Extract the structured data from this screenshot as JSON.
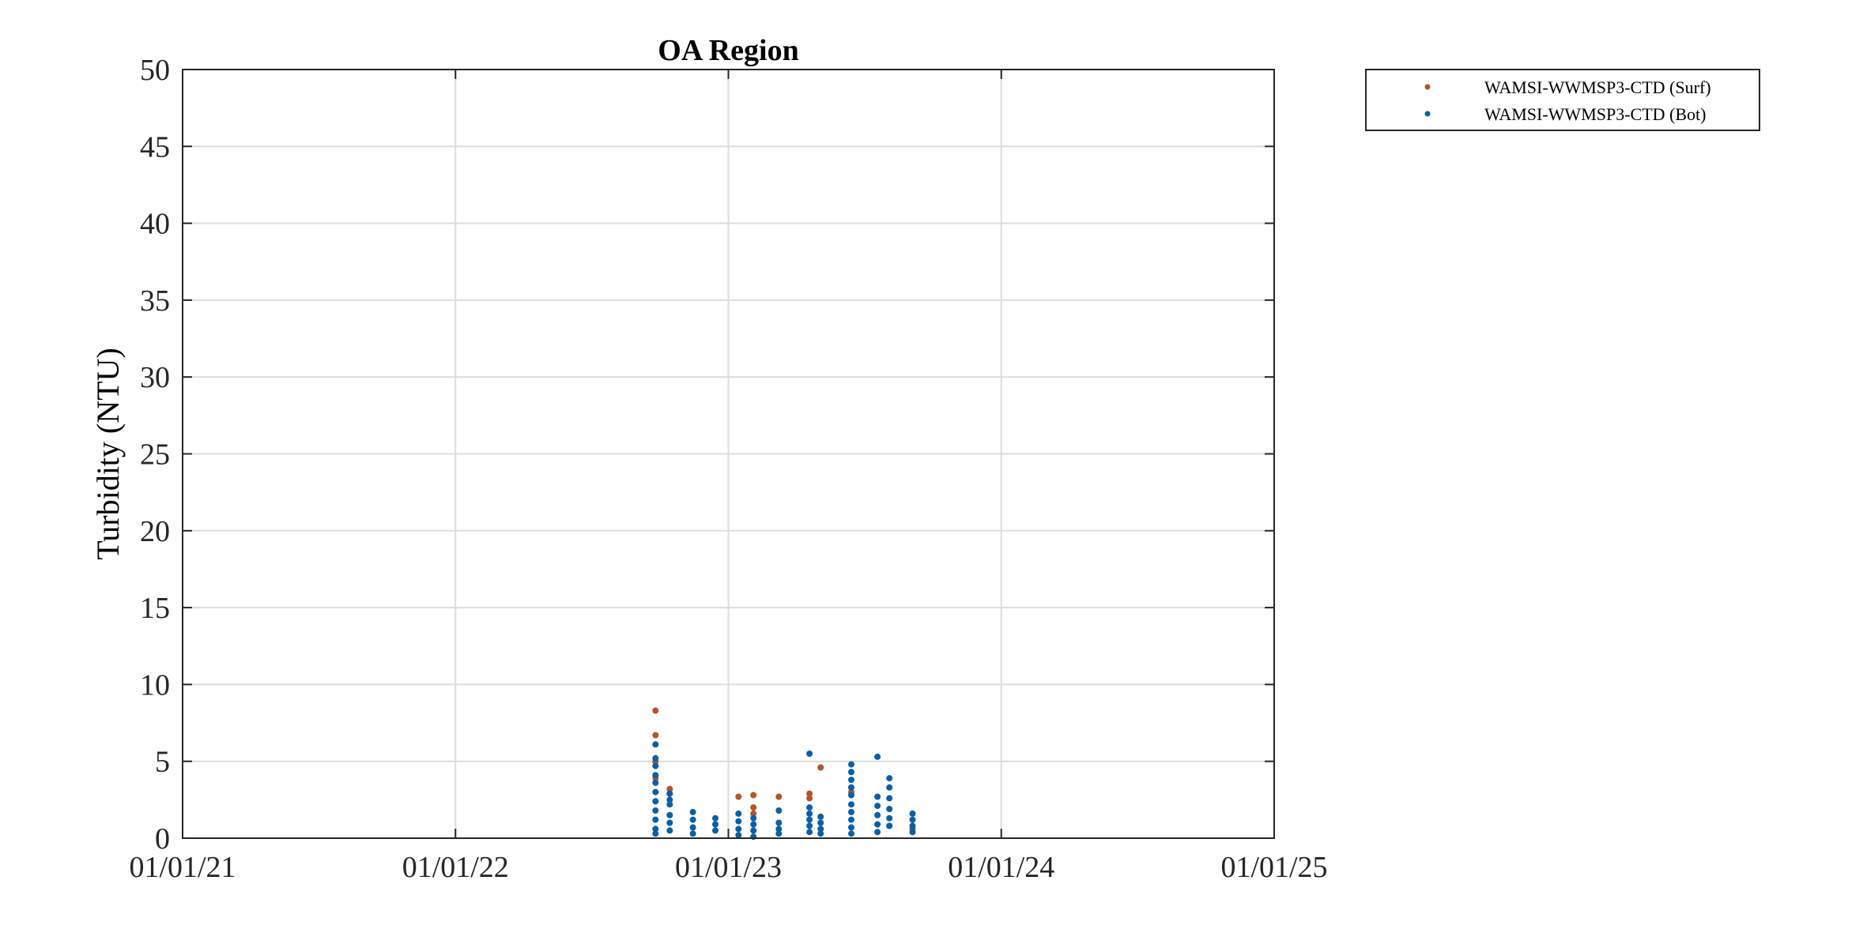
{
  "chart_data": {
    "type": "scatter",
    "title": "OA Region",
    "xlabel": "",
    "ylabel": "Turbidity (NTU)",
    "x_ticks": [
      "01/01/21",
      "01/01/22",
      "01/01/23",
      "01/01/24",
      "01/01/25"
    ],
    "y_ticks": [
      "0",
      "5",
      "10",
      "15",
      "20",
      "25",
      "30",
      "35",
      "40",
      "45",
      "50"
    ],
    "xlim": [
      "2021-01-01",
      "2025-01-01"
    ],
    "ylim": [
      0,
      50
    ],
    "grid": true,
    "legend_position": "outside-top-right",
    "series": [
      {
        "name": "WAMSI-WWMSP3-CTD (Surf)",
        "color": "#b5532a",
        "points": [
          [
            "2022-09-26",
            8.3
          ],
          [
            "2022-09-26",
            6.7
          ],
          [
            "2022-09-26",
            5.0
          ],
          [
            "2022-09-26",
            3.9
          ],
          [
            "2022-10-15",
            3.2
          ],
          [
            "2022-10-15",
            2.9
          ],
          [
            "2023-01-15",
            2.7
          ],
          [
            "2023-02-04",
            2.8
          ],
          [
            "2023-02-04",
            2.0
          ],
          [
            "2023-02-04",
            1.6
          ],
          [
            "2023-03-10",
            2.7
          ],
          [
            "2023-04-20",
            2.9
          ],
          [
            "2023-04-20",
            2.6
          ],
          [
            "2023-05-05",
            4.6
          ],
          [
            "2023-06-15",
            3.0
          ],
          [
            "2023-08-05",
            0.8
          ],
          [
            "2023-09-05",
            0.6
          ]
        ]
      },
      {
        "name": "WAMSI-WWMSP3-CTD (Bot)",
        "color": "#0b5fa5",
        "points": [
          [
            "2022-09-26",
            6.1
          ],
          [
            "2022-09-26",
            5.2
          ],
          [
            "2022-09-26",
            4.7
          ],
          [
            "2022-09-26",
            4.1
          ],
          [
            "2022-09-26",
            3.6
          ],
          [
            "2022-09-26",
            3.0
          ],
          [
            "2022-09-26",
            2.4
          ],
          [
            "2022-09-26",
            1.8
          ],
          [
            "2022-09-26",
            1.2
          ],
          [
            "2022-09-26",
            0.6
          ],
          [
            "2022-09-26",
            0.3
          ],
          [
            "2022-10-15",
            2.9
          ],
          [
            "2022-10-15",
            2.5
          ],
          [
            "2022-10-15",
            2.2
          ],
          [
            "2022-10-15",
            1.5
          ],
          [
            "2022-10-15",
            1.0
          ],
          [
            "2022-10-15",
            0.5
          ],
          [
            "2022-11-15",
            1.7
          ],
          [
            "2022-11-15",
            1.2
          ],
          [
            "2022-11-15",
            0.7
          ],
          [
            "2022-11-15",
            0.3
          ],
          [
            "2022-12-15",
            1.3
          ],
          [
            "2022-12-15",
            0.9
          ],
          [
            "2022-12-15",
            0.5
          ],
          [
            "2023-01-15",
            1.6
          ],
          [
            "2023-01-15",
            1.1
          ],
          [
            "2023-01-15",
            0.6
          ],
          [
            "2023-01-15",
            0.2
          ],
          [
            "2023-02-04",
            1.3
          ],
          [
            "2023-02-04",
            0.9
          ],
          [
            "2023-02-04",
            0.5
          ],
          [
            "2023-02-04",
            0.1
          ],
          [
            "2023-03-10",
            1.8
          ],
          [
            "2023-03-10",
            1.0
          ],
          [
            "2023-03-10",
            0.6
          ],
          [
            "2023-03-10",
            0.3
          ],
          [
            "2023-04-20",
            5.5
          ],
          [
            "2023-04-20",
            2.0
          ],
          [
            "2023-04-20",
            1.6
          ],
          [
            "2023-04-20",
            1.2
          ],
          [
            "2023-04-20",
            0.8
          ],
          [
            "2023-04-20",
            0.4
          ],
          [
            "2023-05-05",
            1.4
          ],
          [
            "2023-05-05",
            1.0
          ],
          [
            "2023-05-05",
            0.6
          ],
          [
            "2023-05-05",
            0.3
          ],
          [
            "2023-06-15",
            4.8
          ],
          [
            "2023-06-15",
            4.3
          ],
          [
            "2023-06-15",
            3.8
          ],
          [
            "2023-06-15",
            3.3
          ],
          [
            "2023-06-15",
            2.8
          ],
          [
            "2023-06-15",
            2.2
          ],
          [
            "2023-06-15",
            1.7
          ],
          [
            "2023-06-15",
            1.2
          ],
          [
            "2023-06-15",
            0.7
          ],
          [
            "2023-06-15",
            0.3
          ],
          [
            "2023-07-20",
            5.3
          ],
          [
            "2023-07-20",
            2.7
          ],
          [
            "2023-07-20",
            2.1
          ],
          [
            "2023-07-20",
            1.5
          ],
          [
            "2023-07-20",
            0.9
          ],
          [
            "2023-07-20",
            0.4
          ],
          [
            "2023-08-05",
            3.9
          ],
          [
            "2023-08-05",
            3.3
          ],
          [
            "2023-08-05",
            2.6
          ],
          [
            "2023-08-05",
            1.9
          ],
          [
            "2023-08-05",
            1.3
          ],
          [
            "2023-08-05",
            0.8
          ],
          [
            "2023-09-05",
            1.6
          ],
          [
            "2023-09-05",
            1.2
          ],
          [
            "2023-09-05",
            0.8
          ],
          [
            "2023-09-05",
            0.4
          ]
        ]
      }
    ]
  }
}
